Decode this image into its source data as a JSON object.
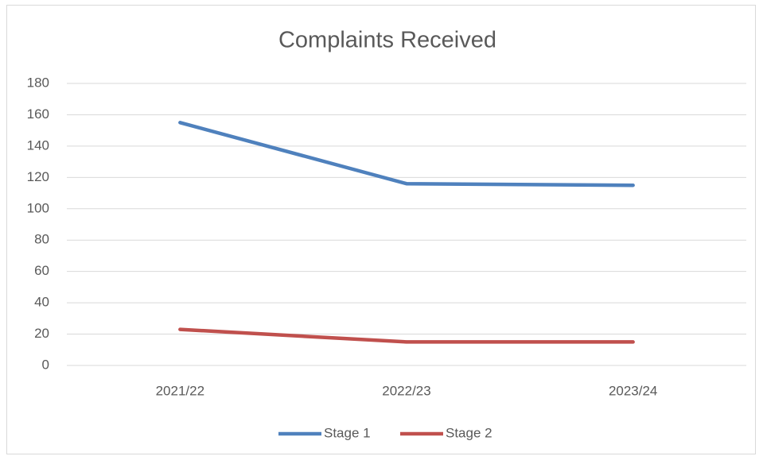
{
  "chart_data": {
    "type": "line",
    "title": "Complaints Received",
    "categories": [
      "2021/22",
      "2022/23",
      "2023/24"
    ],
    "series": [
      {
        "name": "Stage 1",
        "color": "#4f81bd",
        "values": [
          155,
          116,
          115
        ]
      },
      {
        "name": "Stage 2",
        "color": "#c0504d",
        "values": [
          23,
          15,
          15
        ]
      }
    ],
    "ylim": [
      0,
      180
    ],
    "yticks": [
      0,
      20,
      40,
      60,
      80,
      100,
      120,
      140,
      160,
      180
    ],
    "grid": true,
    "legend": "bottom"
  }
}
